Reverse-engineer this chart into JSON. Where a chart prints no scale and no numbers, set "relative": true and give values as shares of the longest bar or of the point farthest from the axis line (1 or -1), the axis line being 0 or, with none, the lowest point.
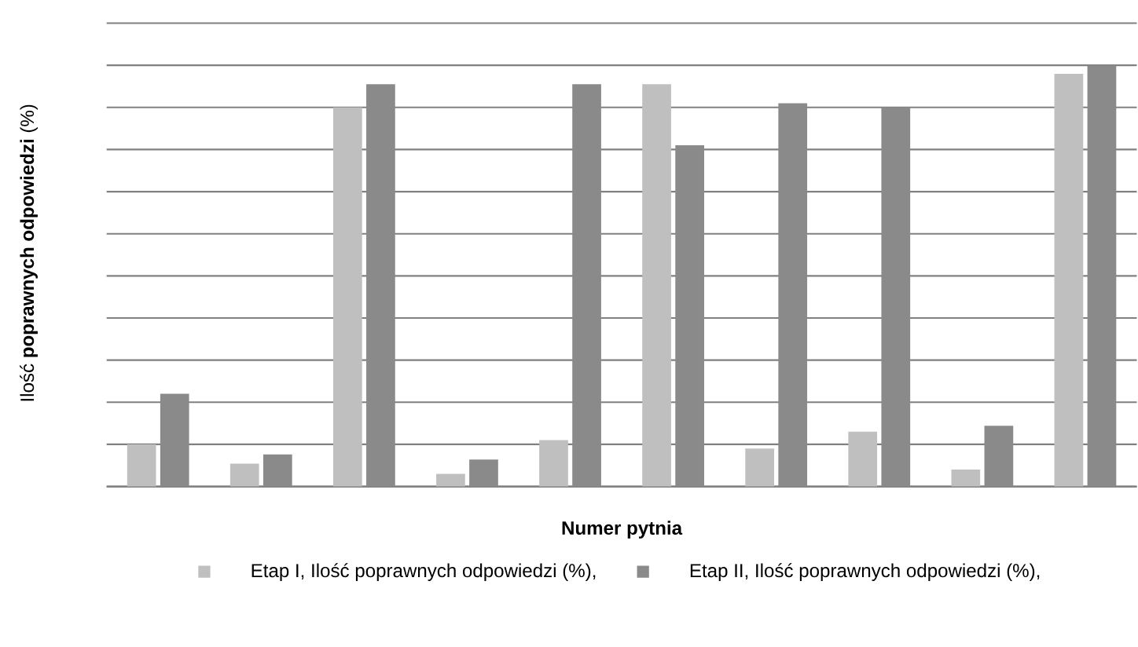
{
  "chart_data": {
    "type": "bar",
    "relative": true,
    "xlabel": "Numer pytnia",
    "ylabel": "Ilość **poprawnych odpowiedzi** (%)",
    "categories": [
      null,
      null,
      null,
      null,
      null,
      null,
      null,
      null,
      null,
      null
    ],
    "grid": "y",
    "legend": "bottom",
    "series": [
      {
        "name": "Etap I, Ilość poprawnych odpowiedzi (%),",
        "color": "#bfbfbf",
        "values": [
          0.1,
          0.054,
          0.9,
          0.03,
          0.11,
          0.955,
          0.09,
          0.13,
          0.04,
          0.98
        ]
      },
      {
        "name": "Etap II, Ilość poprawnych odpowiedzi (%),",
        "color": "#8a8a8a",
        "values": [
          0.22,
          0.076,
          0.955,
          0.064,
          0.955,
          0.81,
          0.91,
          0.9,
          0.144,
          1.0
        ]
      }
    ]
  }
}
